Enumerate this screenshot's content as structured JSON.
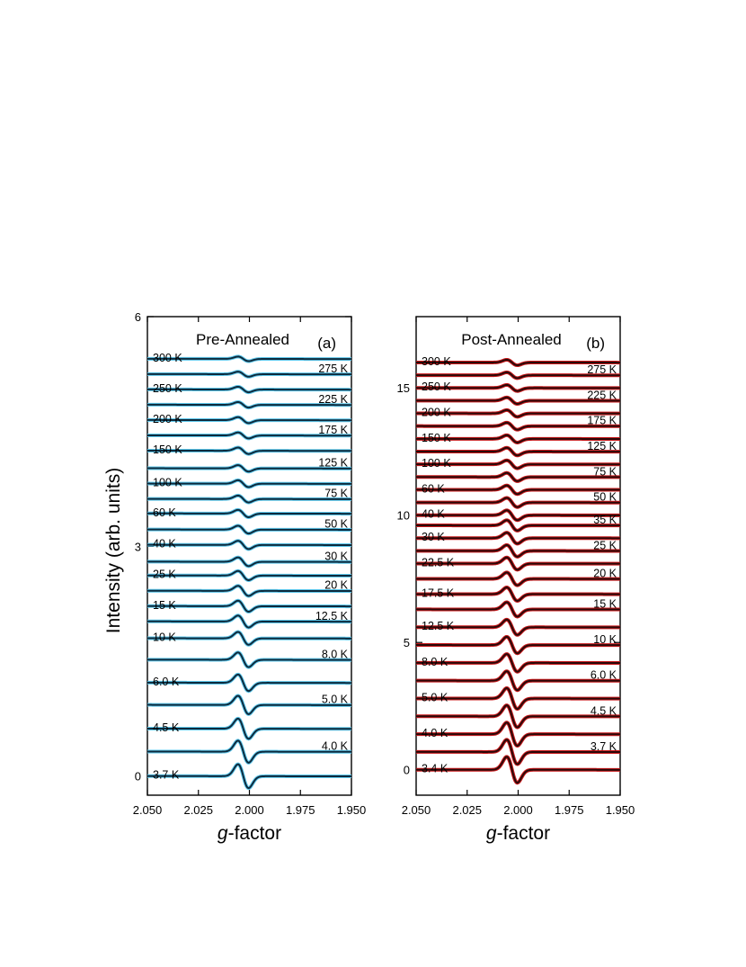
{
  "figure": {
    "ylabel": "Intensity (arb. units)"
  },
  "chart_data": [
    {
      "type": "line",
      "panel": "(a)",
      "title": "Pre-Annealed",
      "xlabel_italic": "g",
      "xlabel_rest": "-factor",
      "xlim": [
        2.05,
        1.95
      ],
      "x_ticks": [
        2.05,
        2.025,
        2.0,
        1.975,
        1.95
      ],
      "x_tick_labels": [
        "2.050",
        "2.025",
        "2.000",
        "1.975",
        "1.950"
      ],
      "ylim": [
        -0.25,
        6.0
      ],
      "y_ticks": [
        0,
        3,
        6
      ],
      "y_tick_labels": [
        "0",
        "3",
        "6"
      ],
      "line_color": "#0d2a3d",
      "fit_color": "#5ec8ec",
      "temperature_labels_left": [
        "3.7 K",
        "4.5 K",
        "6.0 K",
        "10 K",
        "15 K",
        "25 K",
        "40 K",
        "60 K",
        "100 K",
        "150 K",
        "200 K",
        "250 K",
        "300 K"
      ],
      "temperature_labels_right": [
        "4.0 K",
        "5.0 K",
        "8.0 K",
        "12.5 K",
        "20 K",
        "30 K",
        "50 K",
        "75 K",
        "125 K",
        "175 K",
        "225 K",
        "275 K"
      ],
      "series": [
        {
          "temperature": "3.7 K",
          "baseline": 0.0,
          "amplitude": 0.26
        },
        {
          "temperature": "4.0 K",
          "baseline": 0.32,
          "amplitude": 0.24
        },
        {
          "temperature": "4.5 K",
          "baseline": 0.62,
          "amplitude": 0.22
        },
        {
          "temperature": "5.0 K",
          "baseline": 0.93,
          "amplitude": 0.2
        },
        {
          "temperature": "6.0 K",
          "baseline": 1.22,
          "amplitude": 0.18
        },
        {
          "temperature": "8.0 K",
          "baseline": 1.52,
          "amplitude": 0.16
        },
        {
          "temperature": "10 K",
          "baseline": 1.8,
          "amplitude": 0.14
        },
        {
          "temperature": "12.5 K",
          "baseline": 2.02,
          "amplitude": 0.13
        },
        {
          "temperature": "15 K",
          "baseline": 2.22,
          "amplitude": 0.12
        },
        {
          "temperature": "20 K",
          "baseline": 2.42,
          "amplitude": 0.11
        },
        {
          "temperature": "25 K",
          "baseline": 2.62,
          "amplitude": 0.1
        },
        {
          "temperature": "30 K",
          "baseline": 2.8,
          "amplitude": 0.095
        },
        {
          "temperature": "40 K",
          "baseline": 3.02,
          "amplitude": 0.09
        },
        {
          "temperature": "50 K",
          "baseline": 3.22,
          "amplitude": 0.085
        },
        {
          "temperature": "60 K",
          "baseline": 3.43,
          "amplitude": 0.08
        },
        {
          "temperature": "75 K",
          "baseline": 3.62,
          "amplitude": 0.075
        },
        {
          "temperature": "100 K",
          "baseline": 3.82,
          "amplitude": 0.075
        },
        {
          "temperature": "125 K",
          "baseline": 4.02,
          "amplitude": 0.07
        },
        {
          "temperature": "150 K",
          "baseline": 4.25,
          "amplitude": 0.07
        },
        {
          "temperature": "175 K",
          "baseline": 4.45,
          "amplitude": 0.065
        },
        {
          "temperature": "200 K",
          "baseline": 4.65,
          "amplitude": 0.065
        },
        {
          "temperature": "225 K",
          "baseline": 4.85,
          "amplitude": 0.06
        },
        {
          "temperature": "250 K",
          "baseline": 5.05,
          "amplitude": 0.06
        },
        {
          "temperature": "275 K",
          "baseline": 5.25,
          "amplitude": 0.055
        },
        {
          "temperature": "300 K",
          "baseline": 5.45,
          "amplitude": 0.05
        }
      ]
    },
    {
      "type": "line",
      "panel": "(b)",
      "title": "Post-Annealed",
      "xlabel_italic": "g",
      "xlabel_rest": "-factor",
      "xlim": [
        2.05,
        1.95
      ],
      "x_ticks": [
        2.05,
        2.025,
        2.0,
        1.975,
        1.95
      ],
      "x_tick_labels": [
        "2.050",
        "2.025",
        "2.000",
        "1.975",
        "1.950"
      ],
      "ylim": [
        -1.0,
        17.8
      ],
      "y_ticks": [
        0,
        5,
        10,
        15
      ],
      "y_tick_labels": [
        "0",
        "5",
        "10",
        "15"
      ],
      "line_color": "#2a0a0a",
      "fit_color": "#c8181a",
      "temperature_labels_left": [
        "3.4 K",
        "4.0 K",
        "5.0 K",
        "8.0 K",
        "12.5 K",
        "17.5 K",
        "22.5 K",
        "30 K",
        "40 K",
        "60 K",
        "100 K",
        "150 K",
        "200 K",
        "250 K",
        "300 K"
      ],
      "temperature_labels_right": [
        "3.7 K",
        "4.5 K",
        "6.0 K",
        "10 K",
        "15 K",
        "20 K",
        "25 K",
        "35 K",
        "50 K",
        "75 K",
        "125 K",
        "175 K",
        "225 K",
        "275 K"
      ],
      "series": [
        {
          "temperature": "3.4 K",
          "baseline": 0.0,
          "amplitude": 0.85
        },
        {
          "temperature": "3.7 K",
          "baseline": 0.7,
          "amplitude": 0.8
        },
        {
          "temperature": "4.0 K",
          "baseline": 1.4,
          "amplitude": 0.76
        },
        {
          "temperature": "4.5 K",
          "baseline": 2.1,
          "amplitude": 0.72
        },
        {
          "temperature": "5.0 K",
          "baseline": 2.8,
          "amplitude": 0.68
        },
        {
          "temperature": "6.0 K",
          "baseline": 3.5,
          "amplitude": 0.62
        },
        {
          "temperature": "8.0 K",
          "baseline": 4.2,
          "amplitude": 0.58
        },
        {
          "temperature": "10 K",
          "baseline": 4.9,
          "amplitude": 0.54
        },
        {
          "temperature": "12.5 K",
          "baseline": 5.6,
          "amplitude": 0.5
        },
        {
          "temperature": "15 K",
          "baseline": 6.3,
          "amplitude": 0.47
        },
        {
          "temperature": "17.5 K",
          "baseline": 6.9,
          "amplitude": 0.44
        },
        {
          "temperature": "20 K",
          "baseline": 7.5,
          "amplitude": 0.42
        },
        {
          "temperature": "22.5 K",
          "baseline": 8.1,
          "amplitude": 0.4
        },
        {
          "temperature": "25 K",
          "baseline": 8.6,
          "amplitude": 0.38
        },
        {
          "temperature": "30 K",
          "baseline": 9.1,
          "amplitude": 0.36
        },
        {
          "temperature": "35 K",
          "baseline": 9.6,
          "amplitude": 0.34
        },
        {
          "temperature": "40 K",
          "baseline": 10.0,
          "amplitude": 0.32
        },
        {
          "temperature": "50 K",
          "baseline": 10.5,
          "amplitude": 0.3
        },
        {
          "temperature": "60 K",
          "baseline": 11.0,
          "amplitude": 0.28
        },
        {
          "temperature": "75 K",
          "baseline": 11.5,
          "amplitude": 0.27
        },
        {
          "temperature": "100 K",
          "baseline": 12.0,
          "amplitude": 0.26
        },
        {
          "temperature": "125 K",
          "baseline": 12.5,
          "amplitude": 0.25
        },
        {
          "temperature": "150 K",
          "baseline": 13.0,
          "amplitude": 0.24
        },
        {
          "temperature": "175 K",
          "baseline": 13.5,
          "amplitude": 0.23
        },
        {
          "temperature": "200 K",
          "baseline": 14.0,
          "amplitude": 0.22
        },
        {
          "temperature": "225 K",
          "baseline": 14.5,
          "amplitude": 0.21
        },
        {
          "temperature": "250 K",
          "baseline": 15.0,
          "amplitude": 0.2
        },
        {
          "temperature": "275 K",
          "baseline": 15.5,
          "amplitude": 0.19
        },
        {
          "temperature": "300 K",
          "baseline": 16.0,
          "amplitude": 0.18
        }
      ]
    }
  ]
}
